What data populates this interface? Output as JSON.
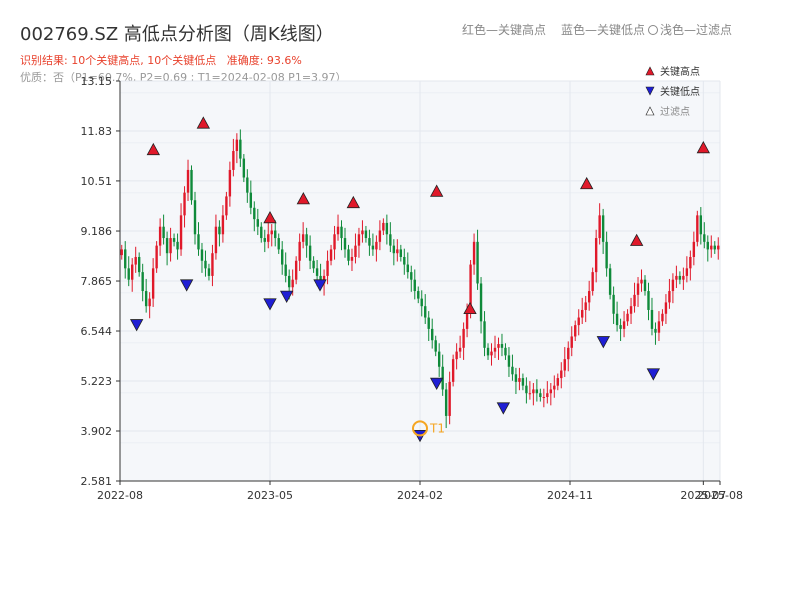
{
  "header": {
    "title": "002769.SZ 高低点分析图（周K线图）",
    "result_label": "识别结果: 10个关键高点, 10个关键低点",
    "accuracy_label": "准确度: 93.6%",
    "quality_line": "优质：否（P1=60.7%, P2=0.69 ; T1=2024-02-08 P1=3.97）",
    "legend_top": {
      "red": "红色—关键高点",
      "blue": "蓝色—关键低点",
      "light": "浅色—过滤点"
    }
  },
  "colors": {
    "up": "#e0192a",
    "down": "#0f8a3a",
    "high_marker": "#e0192a",
    "low_marker": "#1f1fd4",
    "t1_ring": "#f5a623",
    "plot_bg": "#f5f7fa"
  },
  "chart_data": {
    "type": "candlestick",
    "title": "002769.SZ 高低点分析图（周K线图）",
    "ylim": [
      2.581,
      13.15
    ],
    "y_ticks": [
      "2.581",
      "3.902",
      "5.223",
      "6.544",
      "7.865",
      "9.186",
      "10.51",
      "11.83",
      "13.15"
    ],
    "x_ticks": [
      "2022-08",
      "2023-05",
      "2024-02",
      "2024-11",
      "2025-07",
      "2025-08"
    ],
    "x_range": [
      "2022-08",
      "2025-08"
    ],
    "grid": true,
    "legend": {
      "position": "top-right",
      "entries": [
        "关键高点",
        "关键低点",
        "过滤点"
      ]
    },
    "key_highs": [
      {
        "date": "2022-10",
        "price": 11.15
      },
      {
        "date": "2023-01",
        "price": 11.85
      },
      {
        "date": "2023-05",
        "price": 9.35
      },
      {
        "date": "2023-07",
        "price": 9.85
      },
      {
        "date": "2023-10",
        "price": 9.75
      },
      {
        "date": "2024-03",
        "price": 10.05
      },
      {
        "date": "2024-05",
        "price": 6.95
      },
      {
        "date": "2024-12",
        "price": 10.25
      },
      {
        "date": "2025-03",
        "price": 8.75
      },
      {
        "date": "2025-07",
        "price": 11.2
      }
    ],
    "key_lows": [
      {
        "date": "2022-09",
        "price": 6.9
      },
      {
        "date": "2022-12",
        "price": 7.95
      },
      {
        "date": "2023-05",
        "price": 7.45
      },
      {
        "date": "2023-06",
        "price": 7.65
      },
      {
        "date": "2023-08",
        "price": 7.95
      },
      {
        "date": "2024-02",
        "price": 3.97
      },
      {
        "date": "2024-03",
        "price": 5.35
      },
      {
        "date": "2024-07",
        "price": 4.7
      },
      {
        "date": "2025-01",
        "price": 6.45
      },
      {
        "date": "2025-04",
        "price": 5.6
      }
    ],
    "annotation": {
      "label": "T1",
      "date": "2024-02",
      "price": 3.97
    },
    "weekly_close": [
      8.7,
      8.2,
      7.9,
      8.3,
      8.5,
      8.1,
      7.6,
      7.2,
      7.4,
      8.2,
      8.8,
      9.3,
      9.0,
      8.6,
      9.0,
      8.9,
      8.7,
      9.6,
      10.2,
      10.8,
      10.0,
      9.1,
      8.7,
      8.4,
      8.2,
      8.0,
      8.6,
      9.3,
      9.1,
      9.6,
      10.1,
      10.8,
      11.3,
      11.6,
      11.1,
      10.6,
      10.2,
      9.8,
      9.5,
      9.3,
      9.0,
      8.9,
      9.1,
      9.2,
      9.0,
      8.7,
      8.3,
      8.0,
      7.7,
      7.9,
      8.4,
      8.9,
      9.1,
      8.8,
      8.4,
      8.2,
      8.0,
      7.8,
      8.0,
      8.4,
      8.7,
      9.1,
      9.3,
      9.0,
      8.7,
      8.4,
      8.5,
      8.8,
      9.1,
      9.2,
      9.0,
      8.8,
      8.7,
      8.9,
      9.2,
      9.4,
      9.1,
      8.8,
      8.6,
      8.7,
      8.5,
      8.3,
      8.1,
      7.9,
      7.6,
      7.4,
      7.2,
      6.9,
      6.6,
      6.3,
      6.0,
      5.6,
      5.0,
      4.3,
      5.2,
      5.8,
      6.0,
      6.1,
      6.6,
      7.0,
      8.3,
      8.9,
      7.8,
      6.8,
      6.1,
      5.9,
      6.0,
      6.1,
      6.2,
      6.1,
      5.9,
      5.6,
      5.4,
      5.2,
      5.3,
      5.1,
      4.9,
      4.9,
      5.0,
      4.9,
      4.8,
      4.8,
      4.9,
      5.0,
      5.1,
      5.3,
      5.5,
      5.8,
      6.1,
      6.4,
      6.7,
      6.9,
      7.1,
      7.3,
      7.6,
      8.1,
      9.0,
      9.6,
      8.9,
      8.2,
      7.5,
      7.0,
      6.7,
      6.6,
      6.8,
      7.0,
      7.2,
      7.5,
      7.8,
      7.9,
      7.6,
      7.1,
      6.6,
      6.5,
      6.8,
      7.0,
      7.3,
      7.6,
      7.9,
      8.0,
      7.9,
      8.0,
      8.2,
      8.5,
      8.9,
      9.6,
      9.1,
      8.9,
      8.7,
      8.8,
      8.7,
      8.8
    ]
  }
}
